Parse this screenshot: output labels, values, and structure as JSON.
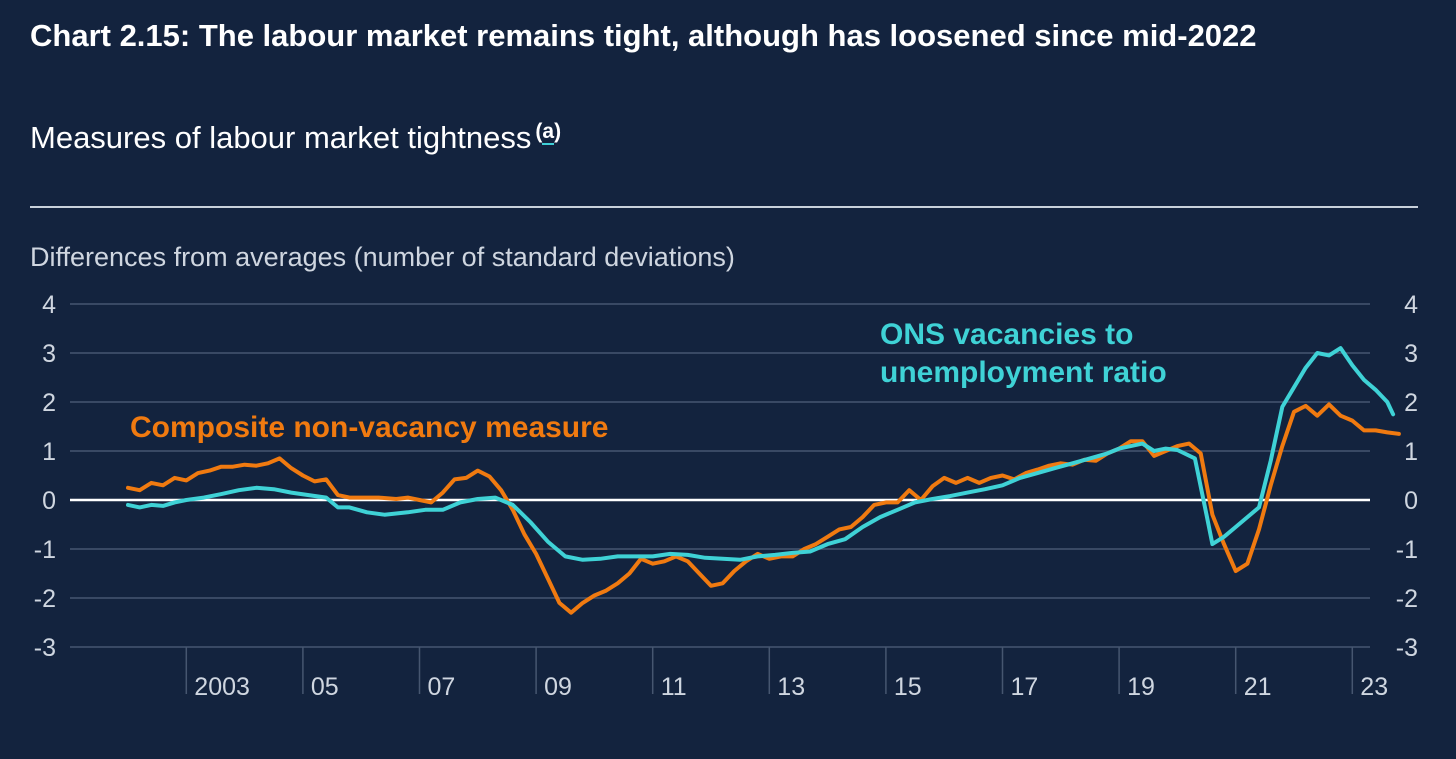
{
  "title": "Chart 2.15: The labour market remains tight, although has loosened since mid-2022",
  "subtitle": "Measures of labour market tightness",
  "subtitle_footnote": "a",
  "colors": {
    "background": "#13233e",
    "ons_series": "#3fd2d6",
    "composite_series": "#f07a10",
    "gridline": "#465670",
    "zero_line": "#ffffff",
    "axis_text": "#cfd6e0"
  },
  "chart_data": {
    "type": "line",
    "title": "",
    "ylabel": "Differences from averages (number of standard deviations)",
    "xlabel": "",
    "ylim": [
      -3,
      4
    ],
    "yticks": [
      4,
      3,
      2,
      1,
      0,
      -1,
      -2,
      -3
    ],
    "y_axis_both_sides": true,
    "xlim": [
      2002,
      2024
    ],
    "xticks": [
      {
        "year": 2003,
        "label": "2003"
      },
      {
        "year": 2005,
        "label": "05"
      },
      {
        "year": 2007,
        "label": "07"
      },
      {
        "year": 2009,
        "label": "09"
      },
      {
        "year": 2011,
        "label": "11"
      },
      {
        "year": 2013,
        "label": "13"
      },
      {
        "year": 2015,
        "label": "15"
      },
      {
        "year": 2017,
        "label": "17"
      },
      {
        "year": 2019,
        "label": "19"
      },
      {
        "year": 2021,
        "label": "21"
      },
      {
        "year": 2023,
        "label": "23"
      }
    ],
    "grid": true,
    "legend": "direct labels on chart",
    "series": [
      {
        "name": "Composite non-vacancy measure",
        "label_lines": [
          "Composite non-vacancy measure"
        ],
        "color": "#f07a10",
        "points": [
          [
            2002.0,
            0.25
          ],
          [
            2002.2,
            0.2
          ],
          [
            2002.4,
            0.35
          ],
          [
            2002.6,
            0.3
          ],
          [
            2002.8,
            0.45
          ],
          [
            2003.0,
            0.4
          ],
          [
            2003.2,
            0.55
          ],
          [
            2003.4,
            0.6
          ],
          [
            2003.6,
            0.68
          ],
          [
            2003.8,
            0.68
          ],
          [
            2004.0,
            0.72
          ],
          [
            2004.2,
            0.7
          ],
          [
            2004.4,
            0.75
          ],
          [
            2004.6,
            0.85
          ],
          [
            2004.8,
            0.65
          ],
          [
            2005.0,
            0.5
          ],
          [
            2005.2,
            0.38
          ],
          [
            2005.4,
            0.42
          ],
          [
            2005.6,
            0.1
          ],
          [
            2005.8,
            0.05
          ],
          [
            2006.0,
            0.05
          ],
          [
            2006.3,
            0.05
          ],
          [
            2006.6,
            0.02
          ],
          [
            2006.8,
            0.05
          ],
          [
            2007.0,
            0.0
          ],
          [
            2007.2,
            -0.05
          ],
          [
            2007.4,
            0.15
          ],
          [
            2007.6,
            0.42
          ],
          [
            2007.8,
            0.45
          ],
          [
            2008.0,
            0.6
          ],
          [
            2008.2,
            0.48
          ],
          [
            2008.4,
            0.2
          ],
          [
            2008.6,
            -0.2
          ],
          [
            2008.8,
            -0.7
          ],
          [
            2009.0,
            -1.1
          ],
          [
            2009.2,
            -1.6
          ],
          [
            2009.4,
            -2.1
          ],
          [
            2009.6,
            -2.3
          ],
          [
            2009.8,
            -2.1
          ],
          [
            2010.0,
            -1.95
          ],
          [
            2010.2,
            -1.85
          ],
          [
            2010.4,
            -1.7
          ],
          [
            2010.6,
            -1.5
          ],
          [
            2010.8,
            -1.2
          ],
          [
            2011.0,
            -1.3
          ],
          [
            2011.2,
            -1.25
          ],
          [
            2011.4,
            -1.15
          ],
          [
            2011.6,
            -1.25
          ],
          [
            2011.8,
            -1.5
          ],
          [
            2012.0,
            -1.75
          ],
          [
            2012.2,
            -1.7
          ],
          [
            2012.4,
            -1.45
          ],
          [
            2012.6,
            -1.25
          ],
          [
            2012.8,
            -1.1
          ],
          [
            2013.0,
            -1.2
          ],
          [
            2013.2,
            -1.15
          ],
          [
            2013.4,
            -1.15
          ],
          [
            2013.6,
            -1.0
          ],
          [
            2013.8,
            -0.9
          ],
          [
            2014.0,
            -0.75
          ],
          [
            2014.2,
            -0.6
          ],
          [
            2014.4,
            -0.55
          ],
          [
            2014.6,
            -0.35
          ],
          [
            2014.8,
            -0.1
          ],
          [
            2015.0,
            -0.05
          ],
          [
            2015.2,
            -0.05
          ],
          [
            2015.4,
            0.2
          ],
          [
            2015.6,
            0.0
          ],
          [
            2015.8,
            0.28
          ],
          [
            2016.0,
            0.45
          ],
          [
            2016.2,
            0.35
          ],
          [
            2016.4,
            0.45
          ],
          [
            2016.6,
            0.35
          ],
          [
            2016.8,
            0.45
          ],
          [
            2017.0,
            0.5
          ],
          [
            2017.2,
            0.42
          ],
          [
            2017.4,
            0.55
          ],
          [
            2017.6,
            0.62
          ],
          [
            2017.8,
            0.7
          ],
          [
            2018.0,
            0.75
          ],
          [
            2018.2,
            0.72
          ],
          [
            2018.4,
            0.82
          ],
          [
            2018.6,
            0.8
          ],
          [
            2018.8,
            0.95
          ],
          [
            2019.0,
            1.05
          ],
          [
            2019.2,
            1.2
          ],
          [
            2019.4,
            1.2
          ],
          [
            2019.6,
            0.9
          ],
          [
            2019.8,
            1.0
          ],
          [
            2020.0,
            1.1
          ],
          [
            2020.2,
            1.15
          ],
          [
            2020.4,
            0.95
          ],
          [
            2020.6,
            -0.3
          ],
          [
            2020.8,
            -0.9
          ],
          [
            2021.0,
            -1.45
          ],
          [
            2021.2,
            -1.3
          ],
          [
            2021.4,
            -0.6
          ],
          [
            2021.6,
            0.3
          ],
          [
            2021.8,
            1.1
          ],
          [
            2022.0,
            1.8
          ],
          [
            2022.2,
            1.92
          ],
          [
            2022.4,
            1.72
          ],
          [
            2022.6,
            1.95
          ],
          [
            2022.8,
            1.72
          ],
          [
            2023.0,
            1.62
          ],
          [
            2023.2,
            1.42
          ],
          [
            2023.4,
            1.42
          ],
          [
            2023.6,
            1.38
          ],
          [
            2023.8,
            1.35
          ]
        ]
      },
      {
        "name": "ONS vacancies to unemployment ratio",
        "label_lines": [
          "ONS vacancies to",
          "unemployment ratio"
        ],
        "color": "#3fd2d6",
        "points": [
          [
            2002.0,
            -0.1
          ],
          [
            2002.2,
            -0.15
          ],
          [
            2002.4,
            -0.1
          ],
          [
            2002.6,
            -0.12
          ],
          [
            2002.8,
            -0.05
          ],
          [
            2003.0,
            0.0
          ],
          [
            2003.3,
            0.05
          ],
          [
            2003.6,
            0.12
          ],
          [
            2003.9,
            0.2
          ],
          [
            2004.2,
            0.25
          ],
          [
            2004.5,
            0.22
          ],
          [
            2004.8,
            0.15
          ],
          [
            2005.1,
            0.1
          ],
          [
            2005.4,
            0.05
          ],
          [
            2005.6,
            -0.15
          ],
          [
            2005.8,
            -0.15
          ],
          [
            2006.1,
            -0.25
          ],
          [
            2006.4,
            -0.3
          ],
          [
            2006.8,
            -0.25
          ],
          [
            2007.1,
            -0.2
          ],
          [
            2007.4,
            -0.2
          ],
          [
            2007.7,
            -0.05
          ],
          [
            2008.0,
            0.02
          ],
          [
            2008.3,
            0.05
          ],
          [
            2008.6,
            -0.1
          ],
          [
            2008.9,
            -0.45
          ],
          [
            2009.2,
            -0.85
          ],
          [
            2009.5,
            -1.15
          ],
          [
            2009.8,
            -1.22
          ],
          [
            2010.1,
            -1.2
          ],
          [
            2010.4,
            -1.15
          ],
          [
            2010.7,
            -1.15
          ],
          [
            2011.0,
            -1.15
          ],
          [
            2011.3,
            -1.1
          ],
          [
            2011.6,
            -1.12
          ],
          [
            2011.9,
            -1.18
          ],
          [
            2012.2,
            -1.2
          ],
          [
            2012.5,
            -1.22
          ],
          [
            2012.8,
            -1.15
          ],
          [
            2013.1,
            -1.12
          ],
          [
            2013.4,
            -1.08
          ],
          [
            2013.7,
            -1.05
          ],
          [
            2014.0,
            -0.9
          ],
          [
            2014.3,
            -0.8
          ],
          [
            2014.6,
            -0.55
          ],
          [
            2014.9,
            -0.35
          ],
          [
            2015.2,
            -0.2
          ],
          [
            2015.5,
            -0.05
          ],
          [
            2015.8,
            0.02
          ],
          [
            2016.1,
            0.08
          ],
          [
            2016.4,
            0.15
          ],
          [
            2016.7,
            0.22
          ],
          [
            2017.0,
            0.3
          ],
          [
            2017.3,
            0.45
          ],
          [
            2017.6,
            0.55
          ],
          [
            2017.9,
            0.65
          ],
          [
            2018.2,
            0.75
          ],
          [
            2018.5,
            0.85
          ],
          [
            2018.8,
            0.95
          ],
          [
            2019.0,
            1.05
          ],
          [
            2019.2,
            1.1
          ],
          [
            2019.4,
            1.15
          ],
          [
            2019.6,
            1.0
          ],
          [
            2019.8,
            1.05
          ],
          [
            2020.0,
            1.02
          ],
          [
            2020.3,
            0.85
          ],
          [
            2020.5,
            -0.3
          ],
          [
            2020.6,
            -0.9
          ],
          [
            2020.8,
            -0.75
          ],
          [
            2021.0,
            -0.55
          ],
          [
            2021.2,
            -0.35
          ],
          [
            2021.4,
            -0.15
          ],
          [
            2021.6,
            0.8
          ],
          [
            2021.8,
            1.9
          ],
          [
            2022.0,
            2.3
          ],
          [
            2022.2,
            2.7
          ],
          [
            2022.4,
            3.0
          ],
          [
            2022.6,
            2.95
          ],
          [
            2022.8,
            3.1
          ],
          [
            2023.0,
            2.75
          ],
          [
            2023.2,
            2.45
          ],
          [
            2023.4,
            2.25
          ],
          [
            2023.6,
            2.0
          ],
          [
            2023.7,
            1.75
          ]
        ]
      }
    ]
  }
}
